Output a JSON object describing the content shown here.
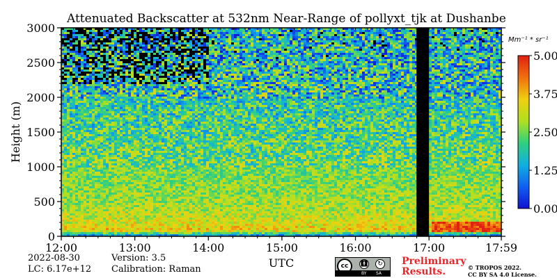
{
  "chart_data": {
    "type": "heatmap",
    "title": "Attenuated Backscatter at 532nm Near-Range of pollyxt_tjk at Dushanbe",
    "xlabel": "UTC",
    "ylabel": "Height (m)",
    "x_ticks": [
      "12:00",
      "13:00",
      "14:00",
      "15:00",
      "16:00",
      "17:00",
      "17:59"
    ],
    "x_range_hours": [
      12.0,
      17.983
    ],
    "y_ticks": [
      0,
      500,
      1000,
      1500,
      2000,
      2500,
      3000
    ],
    "ylim": [
      0,
      3000
    ],
    "colorbar": {
      "unit_label": "Mm⁻¹ * sr⁻¹",
      "ticks": [
        "0.00",
        "1.25",
        "2.50",
        "3.75",
        "5.00"
      ],
      "range": [
        0.0,
        5.0
      ],
      "colors": [
        "#1010d0",
        "#1060f0",
        "#10b0e0",
        "#30d080",
        "#b0e020",
        "#f0d010",
        "#f07010",
        "#e02010"
      ]
    },
    "no_data_interval_hours": [
      16.83,
      17.0
    ],
    "approximate_profile": {
      "description_height_m": [
        0,
        100,
        200,
        500,
        1000,
        1500,
        2000,
        2500,
        3000
      ],
      "typical_value": [
        0.4,
        3.6,
        3.2,
        2.8,
        2.5,
        2.2,
        1.9,
        1.7,
        1.5
      ]
    }
  },
  "footer": {
    "date": "2022-08-30",
    "lc": "LC: 6.17e+12",
    "version": "Version: 3.5",
    "calibration": "Calibration: Raman",
    "preliminary_line1": "Preliminary",
    "preliminary_line2": "Results.",
    "copyright_line1": "© TROPOS 2022.",
    "copyright_line2": "CC BY SA 4.0 License.",
    "cc_text": "cc",
    "cc_by": "BY",
    "cc_sa": "SA"
  },
  "colors": {
    "frame": "#000000",
    "nodata": "#000000"
  }
}
